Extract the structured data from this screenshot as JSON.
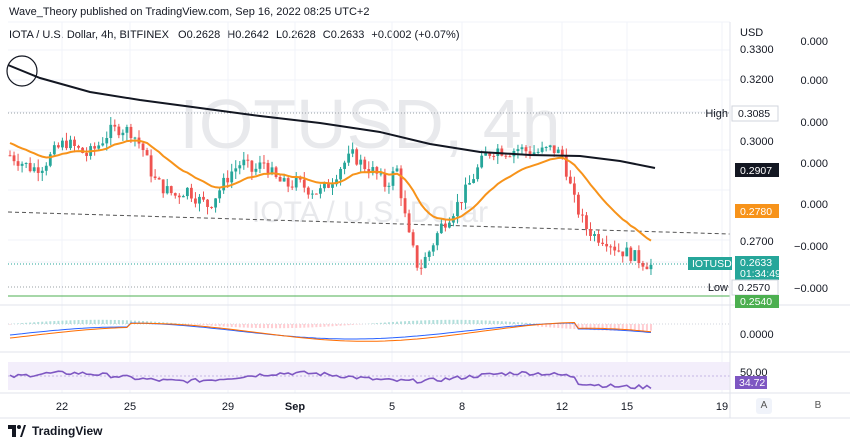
{
  "header": {
    "publisher": "Wave_Theory published on TradingView.com, Sep 16, 2022 08:25 UTC+2",
    "symbol": "IOTA / U.S. Dollar, 4h, BITFINEX",
    "open": "O0.2628",
    "high": "H0.2642",
    "low": "L0.2628",
    "close": "C0.2633",
    "change": "+0.0002 (+0.07%)"
  },
  "watermark": {
    "ticker": "IOTUSD, 4h",
    "name": "IOTA / U.S. Dollar"
  },
  "colors": {
    "up": "#26a69a",
    "down": "#ef5350",
    "ema_fast": "#f7931a",
    "ema_slow": "#131722",
    "macd": "#2962ff",
    "signal": "#ff6d00",
    "rsi": "#7e57c2",
    "support": "#4caf50"
  },
  "price_axis": {
    "currency": "USD",
    "ticks": [
      "0.3300",
      "0.3200",
      "0.3000",
      "0.2700"
    ],
    "ticks_right": [
      "0.000",
      "0.000",
      "0.000",
      "0.000",
      "0.000",
      "−0.000",
      "−0.000",
      "−0.000"
    ],
    "high_label": "High",
    "high_value": "0.3085",
    "low_label": "Low",
    "low_value": "0.2570",
    "ema_slow_value": "0.2907",
    "ema_fast_value": "0.2780",
    "current_symbol": "IOTUSD",
    "current_value": "0.2633",
    "countdown": "01:34:49",
    "support_value": "0.2540",
    "macd_zero": "0.0000",
    "rsi_level": "50.00",
    "rsi_value": "34.72"
  },
  "time_axis": {
    "labels": [
      "22",
      "25",
      "29",
      "Sep",
      "5",
      "8",
      "12",
      "15",
      "19"
    ]
  },
  "scale_buttons": {
    "auto": "A",
    "log": "B"
  },
  "footer": {
    "brand": "TradingView"
  },
  "chart_data": {
    "type": "candlestick",
    "symbol": "IOTUSD",
    "timeframe": "4h",
    "x_labels": [
      "22",
      "25",
      "29",
      "Sep",
      "5",
      "8",
      "12",
      "15",
      "19"
    ],
    "y_unit": "USD",
    "close_path": [
      0.296,
      0.294,
      0.292,
      0.293,
      0.297,
      0.3,
      0.298,
      0.296,
      0.299,
      0.303,
      0.304,
      0.303,
      0.298,
      0.289,
      0.286,
      0.284,
      0.286,
      0.283,
      0.281,
      0.286,
      0.291,
      0.294,
      0.291,
      0.294,
      0.289,
      0.287,
      0.288,
      0.286,
      0.285,
      0.288,
      0.293,
      0.296,
      0.293,
      0.291,
      0.287,
      0.292,
      0.273,
      0.262,
      0.268,
      0.275,
      0.279,
      0.284,
      0.29,
      0.296,
      0.298,
      0.297,
      0.298,
      0.297,
      0.297,
      0.298,
      0.296,
      0.283,
      0.275,
      0.272,
      0.271,
      0.268,
      0.267,
      0.265,
      0.2633
    ],
    "high": 0.3085,
    "low": 0.257,
    "ema_slow_last": 0.2907,
    "ema_fast_last": 0.278,
    "support_line": 0.254,
    "rsi_last": 34.72,
    "grid": true
  }
}
